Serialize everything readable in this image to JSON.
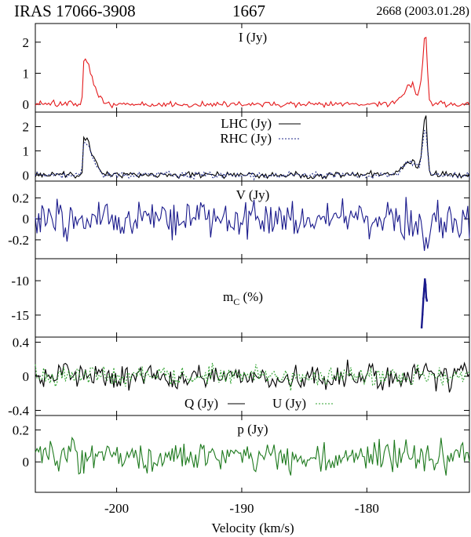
{
  "header": {
    "source": "IRAS 17066-3908",
    "frequency": "1667",
    "observation": "2668 (2003.01.28)"
  },
  "chart_data": {
    "type": "line",
    "xlabel": "Velocity (km/s)",
    "xlim": [
      -206.5,
      -171.8
    ],
    "xticks": [
      -200,
      -190,
      -180
    ],
    "x_tick_labels": [
      "-200",
      "-190",
      "-180"
    ],
    "panels": [
      {
        "id": "I",
        "label": "I (Jy)",
        "ylim": [
          -0.25,
          2.6
        ],
        "yticks": [
          0,
          1,
          2
        ],
        "y_tick_labels": [
          "0",
          "1",
          "2"
        ],
        "series": [
          {
            "name": "I",
            "color": "#e41a1c",
            "dash": "none",
            "kind": "spectrum",
            "noise": 0.05,
            "seed": 11,
            "peaks": [
              {
                "v": -202.6,
                "h": 1.45,
                "wl": 0.12,
                "wr": 0.9
              },
              {
                "v": -175.3,
                "h": 2.2,
                "wl": 0.35,
                "wr": 0.18
              },
              {
                "v": -176.4,
                "h": 0.6,
                "wl": 0.9,
                "wr": 0.5
              }
            ]
          }
        ]
      },
      {
        "id": "LR",
        "label": "",
        "ylim": [
          -0.25,
          2.6
        ],
        "yticks": [
          0,
          1,
          2
        ],
        "y_tick_labels": [
          "0",
          "1",
          "2"
        ],
        "legend": [
          {
            "text": "LHC (Jy)",
            "color": "#000000",
            "dash": "none"
          },
          {
            "text": "RHC (Jy)",
            "color": "#1f2a8a",
            "dash": "2,2"
          }
        ],
        "series": [
          {
            "name": "LHC",
            "color": "#000000",
            "dash": "none",
            "kind": "spectrum",
            "noise": 0.07,
            "seed": 23,
            "peaks": [
              {
                "v": -202.6,
                "h": 1.55,
                "wl": 0.12,
                "wr": 0.9
              },
              {
                "v": -175.3,
                "h": 2.45,
                "wl": 0.35,
                "wr": 0.18
              },
              {
                "v": -176.4,
                "h": 0.6,
                "wl": 0.9,
                "wr": 0.5
              }
            ]
          },
          {
            "name": "RHC",
            "color": "#1f2a8a",
            "dash": "2,2",
            "kind": "spectrum",
            "noise": 0.07,
            "seed": 37,
            "peaks": [
              {
                "v": -202.6,
                "h": 1.35,
                "wl": 0.12,
                "wr": 0.9
              },
              {
                "v": -175.3,
                "h": 1.95,
                "wl": 0.35,
                "wr": 0.18
              },
              {
                "v": -176.4,
                "h": 0.6,
                "wl": 0.9,
                "wr": 0.5
              }
            ]
          }
        ]
      },
      {
        "id": "V",
        "label": "V (Jy)",
        "ylim": [
          -0.38,
          0.36
        ],
        "yticks": [
          -0.2,
          0,
          0.2
        ],
        "y_tick_labels": [
          "-0.2",
          "0",
          "0.2"
        ],
        "series": [
          {
            "name": "V",
            "color": "#1a1a8c",
            "dash": "none",
            "kind": "noise",
            "noise": 0.085,
            "seed": 53,
            "dips": [
              {
                "v": -175.3,
                "h": -0.25,
                "w": 0.3
              }
            ]
          }
        ]
      },
      {
        "id": "mC",
        "label": "mC (%)",
        "label_main": "m",
        "label_sub": "C",
        "label_rest": " (%)",
        "ylim": [
          -18.2,
          -6.8
        ],
        "yticks": [
          -15,
          -10
        ],
        "y_tick_labels": [
          "-15",
          "-10"
        ],
        "series": [
          {
            "name": "mC",
            "color": "#1a1a8c",
            "dash": "none",
            "kind": "points",
            "x": [
              -175.62,
              -175.55,
              -175.48,
              -175.42,
              -175.36,
              -175.31,
              -175.26,
              -175.2
            ],
            "y": [
              -16.8,
              -14.9,
              -12.6,
              -11.2,
              -9.8,
              -10.6,
              -12.4,
              -12.9
            ]
          }
        ]
      },
      {
        "id": "QU",
        "label": "",
        "ylim": [
          -0.46,
          0.46
        ],
        "yticks": [
          -0.4,
          0,
          0.4
        ],
        "y_tick_labels": [
          "-0.4",
          "0",
          "0.4"
        ],
        "legend_bottom": [
          {
            "text": "Q (Jy)",
            "color": "#000000",
            "dash": "none"
          },
          {
            "text": "U (Jy)",
            "color": "#2ca02c",
            "dash": "2,2"
          }
        ],
        "series": [
          {
            "name": "Q",
            "color": "#000000",
            "dash": "none",
            "kind": "noise",
            "noise": 0.075,
            "seed": 71
          },
          {
            "name": "U",
            "color": "#2ca02c",
            "dash": "2,2",
            "kind": "noise",
            "noise": 0.06,
            "seed": 89
          }
        ]
      },
      {
        "id": "p",
        "label": "p (Jy)",
        "ylim": [
          -0.19,
          0.29
        ],
        "yticks": [
          0,
          0.2
        ],
        "y_tick_labels": [
          "0",
          "0.2"
        ],
        "series": [
          {
            "name": "p",
            "color": "#1e7a1e",
            "dash": "none",
            "kind": "noise",
            "noise": 0.05,
            "seed": 97,
            "offset": 0.03
          }
        ]
      }
    ]
  }
}
